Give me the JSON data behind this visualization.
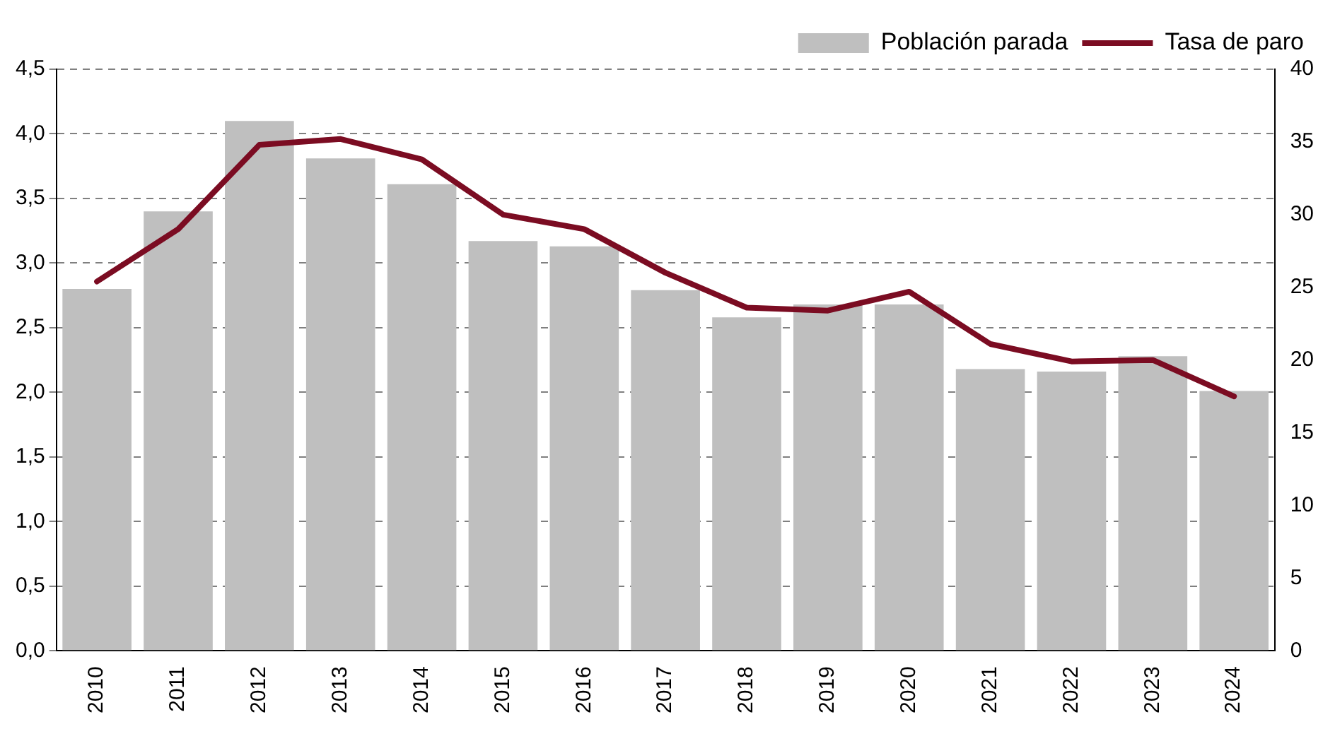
{
  "chart_data": {
    "type": "bar",
    "categories": [
      "2010",
      "2011",
      "2012",
      "2013",
      "2014",
      "2015",
      "2016",
      "2017",
      "2018",
      "2019",
      "2020",
      "2021",
      "2022",
      "2023",
      "2024"
    ],
    "series": [
      {
        "name": "Población parada",
        "color": "#bfbfbf",
        "values": [
          2.8,
          3.4,
          4.1,
          3.81,
          3.61,
          3.17,
          3.13,
          2.79,
          2.58,
          2.68,
          2.68,
          2.18,
          2.16,
          2.28,
          2.01
        ]
      },
      {
        "name": "Tasa de paro",
        "type": "line",
        "axis": "y2",
        "color": "#7b0c22",
        "values": [
          25.4,
          29.0,
          34.8,
          35.2,
          33.8,
          30.0,
          29.0,
          26.0,
          23.6,
          23.4,
          24.7,
          21.1,
          19.9,
          20.0,
          17.5
        ]
      }
    ],
    "ylim": [
      0,
      4.5
    ],
    "yticks": [
      {
        "value": 0,
        "label": "0,0"
      },
      {
        "value": 0.5,
        "label": "0,5"
      },
      {
        "value": 1,
        "label": "1,0"
      },
      {
        "value": 1.5,
        "label": "1,5"
      },
      {
        "value": 2,
        "label": "2,0"
      },
      {
        "value": 2.5,
        "label": "2,5"
      },
      {
        "value": 3,
        "label": "3,0"
      },
      {
        "value": 3.5,
        "label": "3,5"
      },
      {
        "value": 4,
        "label": "4,0"
      },
      {
        "value": 4.5,
        "label": "4,5"
      }
    ],
    "y2lim": [
      0,
      40
    ],
    "y2ticks": [
      0,
      5,
      10,
      15,
      20,
      25,
      30,
      35,
      40
    ],
    "grid": "y",
    "legend": "top right",
    "marker": "none",
    "line_style": "solid"
  }
}
